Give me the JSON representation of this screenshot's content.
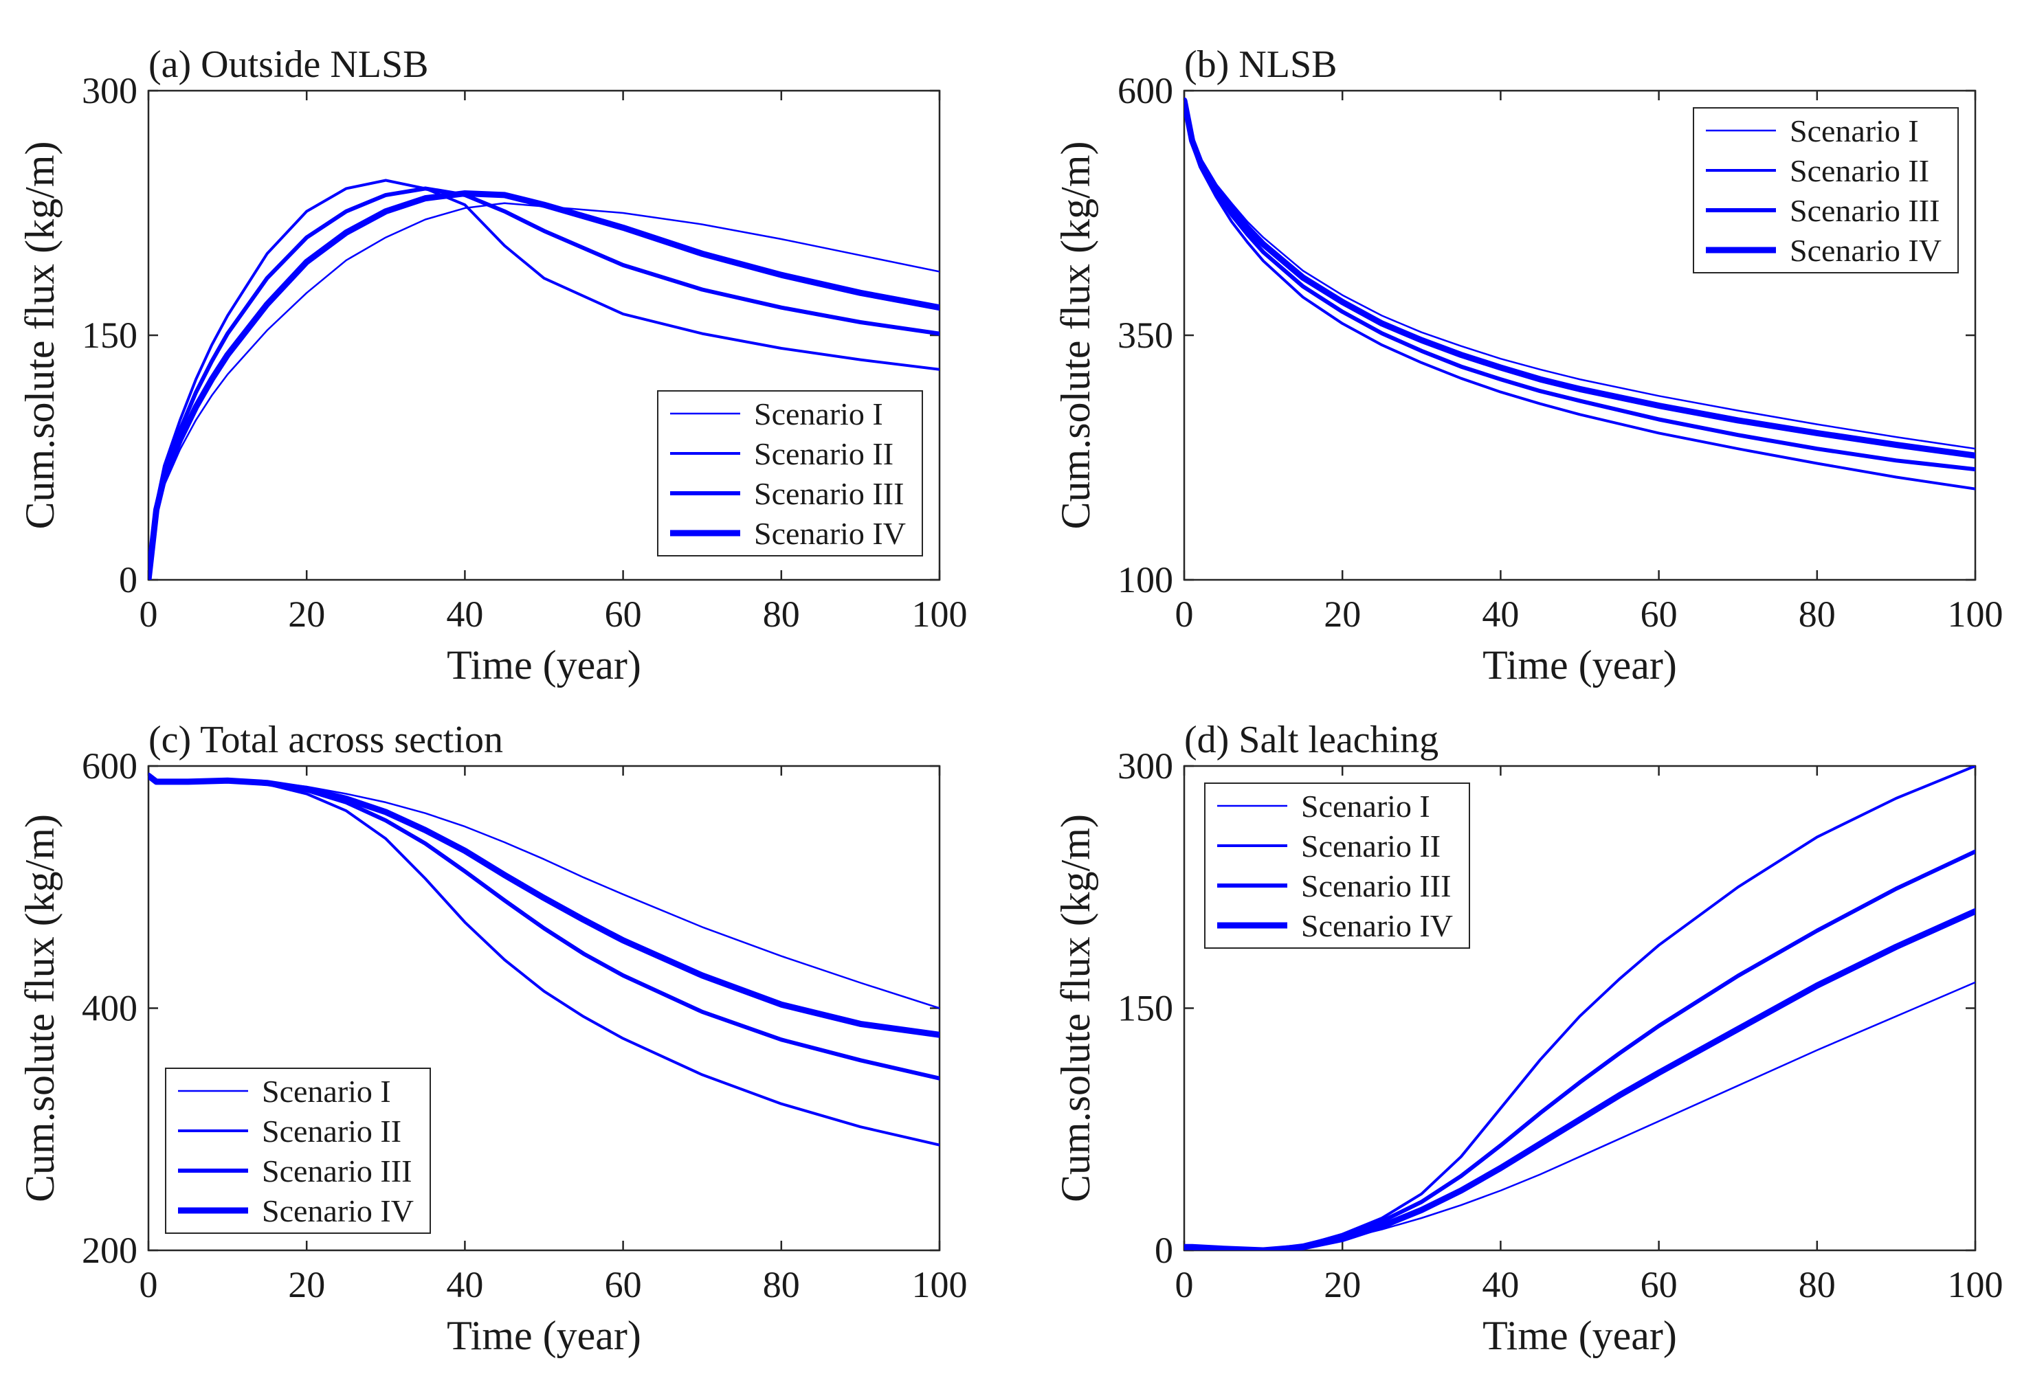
{
  "colors": {
    "line": "#0000ff",
    "axis": "#262626",
    "background": "#ffffff"
  },
  "chart_data": [
    {
      "type": "line",
      "title": "(a) Outside NLSB",
      "xlabel": "Time (year)",
      "ylabel": "Cum.solute flux (kg/m)",
      "xlim": [
        0,
        100
      ],
      "ylim": [
        0,
        300
      ],
      "xticks": [
        0,
        20,
        40,
        60,
        80,
        100
      ],
      "yticks": [
        0,
        150,
        300
      ],
      "legend_position": "bottom-right",
      "x": [
        0,
        1,
        2,
        4,
        6,
        8,
        10,
        15,
        20,
        25,
        30,
        35,
        40,
        45,
        50,
        60,
        70,
        80,
        90,
        100
      ],
      "series": [
        {
          "name": "Scenario I",
          "values": [
            0,
            40,
            58,
            80,
            98,
            113,
            126,
            153,
            176,
            196,
            210,
            221,
            228,
            231,
            229,
            225,
            218,
            209,
            199,
            189
          ]
        },
        {
          "name": "Scenario II",
          "values": [
            0,
            47,
            70,
            98,
            123,
            144,
            162,
            200,
            226,
            240,
            245,
            240,
            230,
            205,
            185,
            163,
            151,
            142,
            135,
            129
          ]
        },
        {
          "name": "Scenario III",
          "values": [
            0,
            45,
            67,
            92,
            115,
            134,
            151,
            185,
            210,
            226,
            236,
            240,
            236,
            226,
            214,
            193,
            178,
            167,
            158,
            151
          ]
        },
        {
          "name": "Scenario IV",
          "values": [
            0,
            43,
            63,
            86,
            106,
            123,
            138,
            169,
            195,
            213,
            226,
            234,
            237,
            236,
            230,
            216,
            200,
            187,
            176,
            167
          ]
        }
      ]
    },
    {
      "type": "line",
      "title": "(b) NLSB",
      "xlabel": "Time (year)",
      "ylabel": "Cum.solute flux (kg/m)",
      "xlim": [
        0,
        100
      ],
      "ylim": [
        100,
        600
      ],
      "xticks": [
        0,
        20,
        40,
        60,
        80,
        100
      ],
      "yticks": [
        100,
        350,
        600
      ],
      "legend_position": "top-right",
      "x": [
        0,
        1,
        2,
        4,
        6,
        8,
        10,
        15,
        20,
        25,
        30,
        35,
        40,
        45,
        50,
        60,
        70,
        80,
        90,
        100
      ],
      "series": [
        {
          "name": "Scenario I",
          "values": [
            590,
            550,
            530,
            505,
            485,
            466,
            450,
            416,
            391,
            370,
            353,
            339,
            326,
            315,
            305,
            288,
            273,
            259,
            246,
            234
          ]
        },
        {
          "name": "Scenario II",
          "values": [
            590,
            545,
            522,
            492,
            466,
            445,
            426,
            389,
            362,
            340,
            322,
            306,
            292,
            280,
            269,
            250,
            234,
            219,
            205,
            193
          ]
        },
        {
          "name": "Scenario III",
          "values": [
            590,
            547,
            526,
            497,
            473,
            453,
            435,
            400,
            374,
            352,
            334,
            318,
            305,
            293,
            283,
            264,
            248,
            234,
            222,
            213
          ]
        },
        {
          "name": "Scenario IV",
          "values": [
            590,
            549,
            528,
            501,
            479,
            460,
            443,
            409,
            384,
            362,
            345,
            330,
            317,
            305,
            295,
            278,
            263,
            250,
            238,
            227
          ]
        }
      ]
    },
    {
      "type": "line",
      "title": "(c) Total across section",
      "xlabel": "Time (year)",
      "ylabel": "Cum.solute flux (kg/m)",
      "xlim": [
        0,
        100
      ],
      "ylim": [
        200,
        600
      ],
      "xticks": [
        0,
        20,
        40,
        60,
        80,
        100
      ],
      "yticks": [
        200,
        400,
        600
      ],
      "legend_position": "bottom-left",
      "x": [
        0,
        1,
        2,
        5,
        10,
        15,
        20,
        25,
        30,
        35,
        40,
        45,
        50,
        55,
        60,
        70,
        80,
        90,
        100
      ],
      "series": [
        {
          "name": "Scenario I",
          "values": [
            592,
            587,
            587,
            587,
            588,
            587,
            583,
            577,
            570,
            561,
            550,
            537,
            523,
            508,
            494,
            467,
            443,
            421,
            400
          ]
        },
        {
          "name": "Scenario II",
          "values": [
            592,
            587,
            587,
            587,
            588,
            585,
            577,
            563,
            540,
            507,
            471,
            440,
            414,
            393,
            375,
            345,
            321,
            302,
            287
          ]
        },
        {
          "name": "Scenario III",
          "values": [
            592,
            587,
            587,
            587,
            588,
            586,
            580,
            570,
            555,
            536,
            513,
            489,
            466,
            445,
            427,
            397,
            374,
            357,
            342
          ]
        },
        {
          "name": "Scenario IV",
          "values": [
            592,
            587,
            587,
            587,
            588,
            586,
            581,
            573,
            562,
            547,
            530,
            510,
            491,
            473,
            456,
            427,
            403,
            387,
            378
          ]
        }
      ]
    },
    {
      "type": "line",
      "title": "(d) Salt leaching",
      "xlabel": "Time (year)",
      "ylabel": "Cum.solute flux (kg/m)",
      "xlim": [
        0,
        100
      ],
      "ylim": [
        0,
        300
      ],
      "xticks": [
        0,
        20,
        40,
        60,
        80,
        100
      ],
      "yticks": [
        0,
        150,
        300
      ],
      "legend_position": "top-left",
      "x": [
        0,
        1,
        5,
        10,
        15,
        20,
        25,
        30,
        35,
        40,
        45,
        50,
        55,
        60,
        70,
        80,
        90,
        100
      ],
      "series": [
        {
          "name": "Scenario I",
          "values": [
            2,
            2,
            1,
            0,
            2,
            7,
            13,
            20,
            28,
            37,
            47,
            58,
            69,
            80,
            102,
            124,
            145,
            166
          ]
        },
        {
          "name": "Scenario II",
          "values": [
            2,
            2,
            1,
            0,
            3,
            10,
            20,
            35,
            58,
            88,
            118,
            145,
            168,
            189,
            225,
            256,
            280,
            300
          ]
        },
        {
          "name": "Scenario III",
          "values": [
            2,
            2,
            1,
            0,
            3,
            9,
            18,
            30,
            46,
            65,
            85,
            104,
            122,
            139,
            170,
            198,
            224,
            247
          ]
        },
        {
          "name": "Scenario IV",
          "values": [
            2,
            2,
            1,
            0,
            2,
            7,
            15,
            25,
            37,
            51,
            66,
            81,
            96,
            110,
            137,
            164,
            188,
            210
          ]
        }
      ]
    }
  ]
}
